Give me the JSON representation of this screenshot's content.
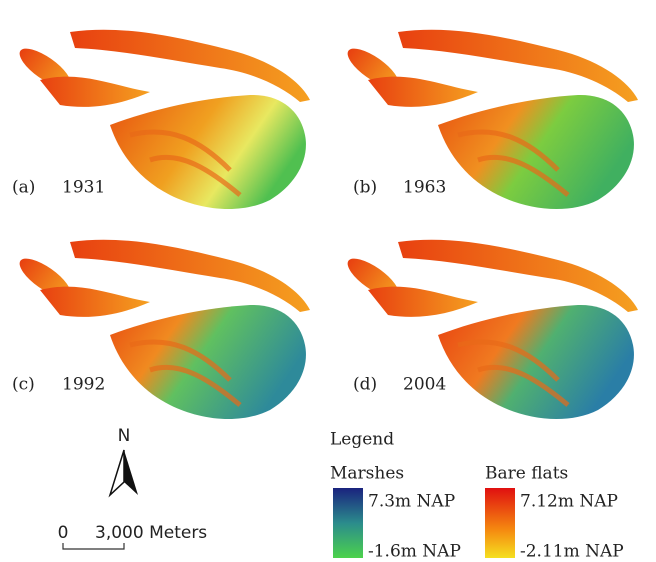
{
  "panels": [
    {
      "label": "(a)",
      "year": "1931"
    },
    {
      "label": "(b)",
      "year": "1963"
    },
    {
      "label": "(c)",
      "year": "1992"
    },
    {
      "label": "(d)",
      "year": "2004"
    }
  ],
  "north": "N",
  "scale_bar": {
    "zero": "0",
    "distance": "3,000 Meters"
  },
  "legend": {
    "title": "Legend",
    "marshes": {
      "name": "Marshes",
      "max": "7.3m NAP",
      "min": "-1.6m NAP"
    },
    "bare_flats": {
      "name": "Bare flats",
      "max": "7.12m NAP",
      "min": "-2.11m NAP"
    }
  }
}
